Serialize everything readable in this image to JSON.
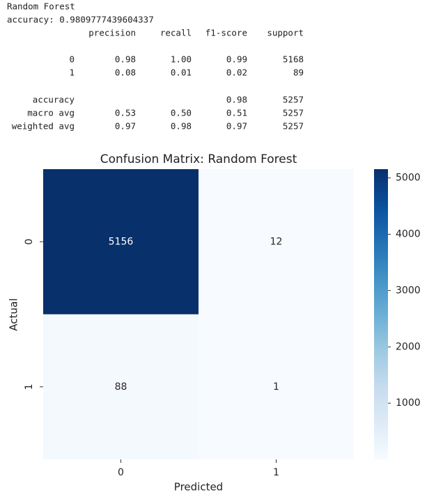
{
  "report": {
    "title": "Random Forest",
    "accuracy_line": "accuracy: 0.9809777439604337",
    "columns": [
      "precision",
      "recall",
      "f1-score",
      "support"
    ],
    "rows": [
      {
        "label": "0",
        "cells": [
          "0.98",
          "1.00",
          "0.99",
          "5168"
        ]
      },
      {
        "label": "1",
        "cells": [
          "0.08",
          "0.01",
          "0.02",
          "89"
        ]
      }
    ],
    "summary": [
      {
        "label": "accuracy",
        "cells": [
          null,
          null,
          "0.98",
          "5257"
        ]
      },
      {
        "label": "macro avg",
        "cells": [
          "0.53",
          "0.50",
          "0.51",
          "5257"
        ]
      },
      {
        "label": "weighted avg",
        "cells": [
          "0.97",
          "0.98",
          "0.97",
          "5257"
        ]
      }
    ]
  },
  "chart_data": {
    "type": "heatmap",
    "title": "Confusion Matrix: Random Forest",
    "x_label": "Predicted",
    "y_label": "Actual",
    "x_categories": [
      "0",
      "1"
    ],
    "y_categories": [
      "0",
      "1"
    ],
    "values": [
      [
        5156,
        12
      ],
      [
        88,
        1
      ]
    ],
    "colormap": "Blues",
    "clim": [
      1,
      5156
    ],
    "cticks": [
      1000,
      2000,
      3000,
      4000,
      5000
    ]
  }
}
